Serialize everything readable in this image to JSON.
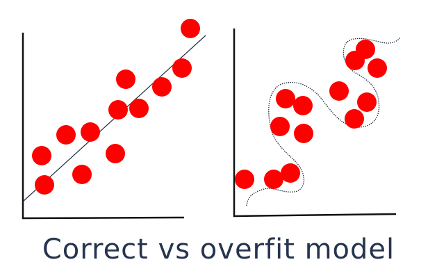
{
  "caption": "Correct vs overfit model",
  "colors": {
    "points": "#ff0000",
    "axes": "#111111",
    "fit_line": "#1f2a44",
    "caption": "#26344f"
  },
  "panels": [
    {
      "name": "correct",
      "fit": "straight-dotted-line"
    },
    {
      "name": "overfit",
      "fit": "wiggly-dotted-curve"
    }
  ]
}
